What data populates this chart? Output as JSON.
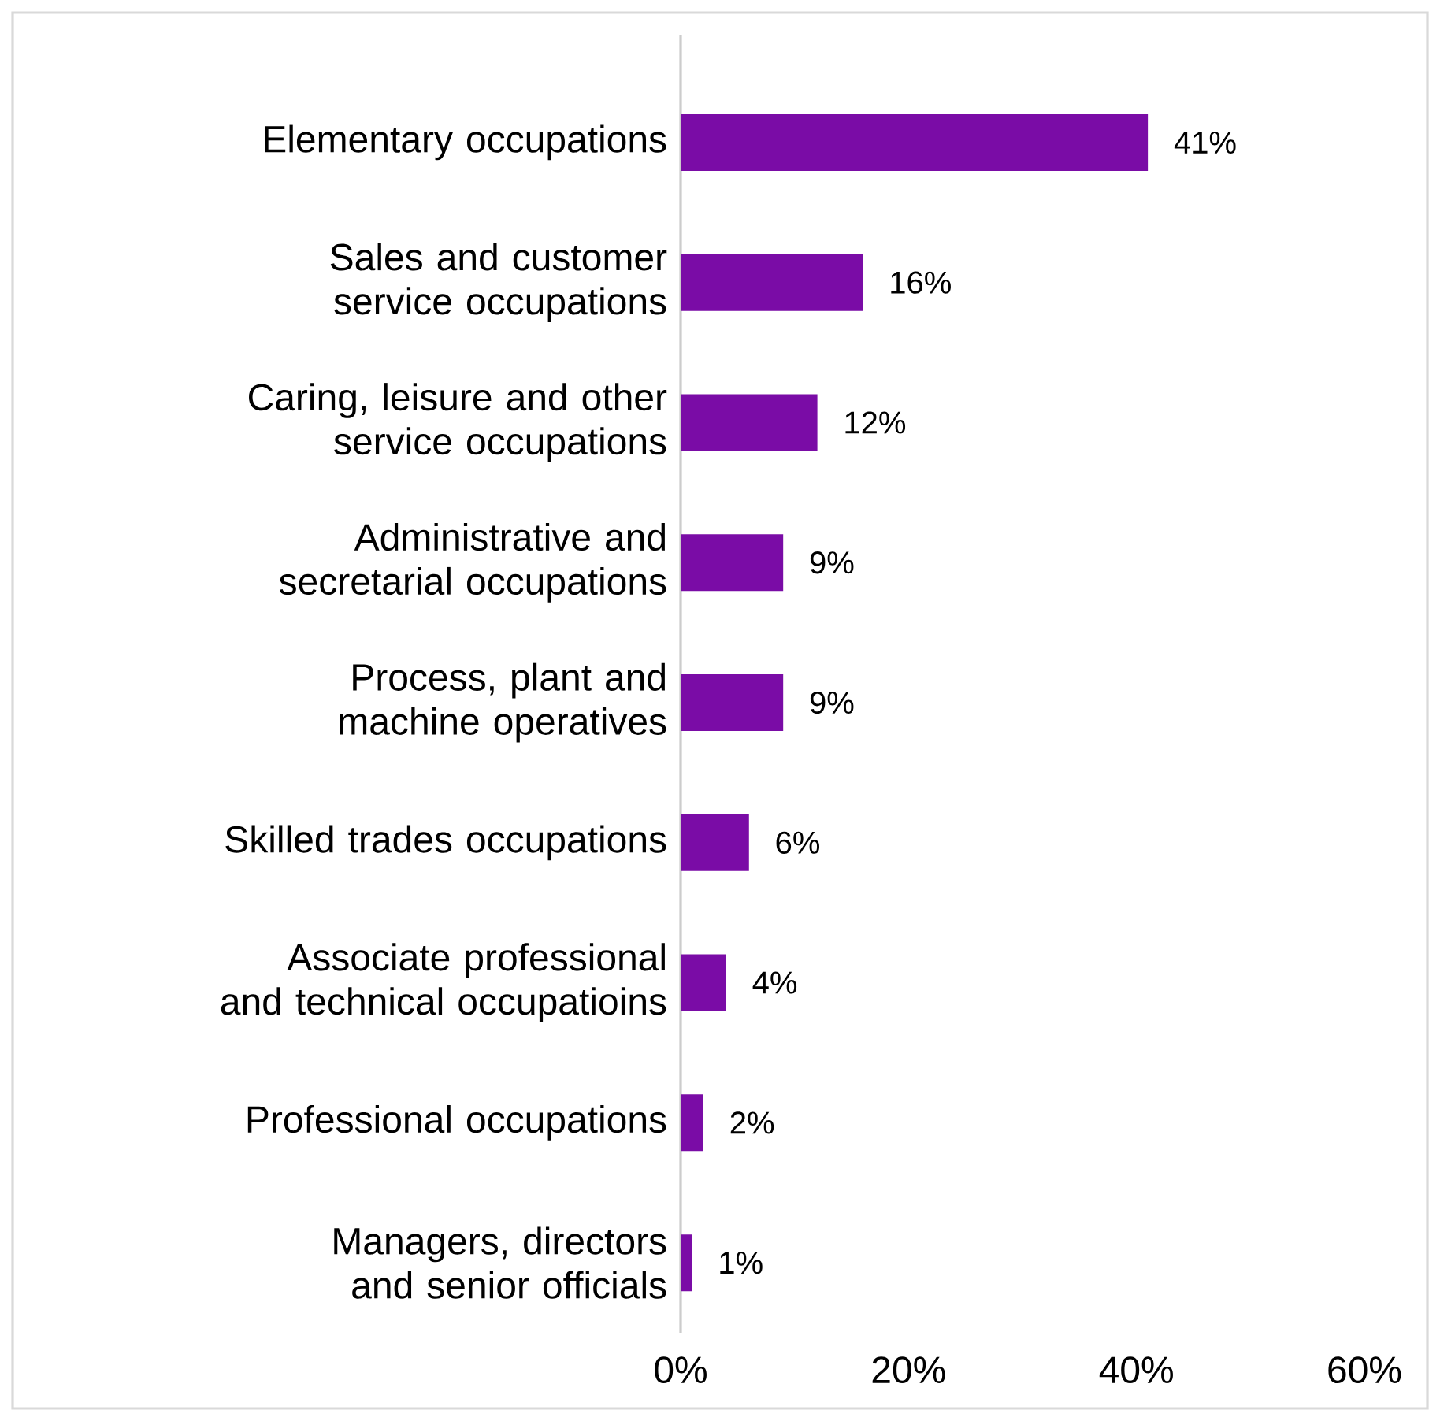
{
  "chart_data": {
    "type": "bar",
    "orientation": "horizontal",
    "categories": [
      "Elementary occupations",
      "Sales and customer service occupations",
      "Caring, leisure and other service occupations",
      "Administrative and secretarial occupations",
      "Process, plant and machine operatives",
      "Skilled trades occupations",
      "Associate professional and technical occupatioins",
      "Professional occupations",
      "Managers, directors and senior officials"
    ],
    "values": [
      41,
      16,
      12,
      9,
      9,
      6,
      4,
      2,
      1
    ],
    "value_labels": [
      "41%",
      "16%",
      "12%",
      "9%",
      "9%",
      "6%",
      "4%",
      "2%",
      "1%"
    ],
    "color": "#7a0ca6",
    "xlim": [
      0,
      60
    ],
    "xticks": [
      {
        "value": 0,
        "label": "0%"
      },
      {
        "value": 20,
        "label": "20%"
      },
      {
        "value": 40,
        "label": "40%"
      },
      {
        "value": 60,
        "label": "60%"
      }
    ],
    "grid": false
  }
}
